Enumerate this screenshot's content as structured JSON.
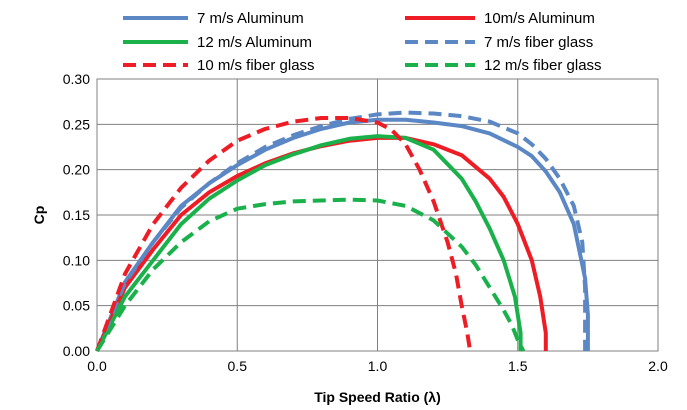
{
  "chart_data": {
    "type": "line",
    "title": "",
    "xlabel": "Tip Speed Ratio (λ)",
    "ylabel": "Cp",
    "xlim": [
      0.0,
      2.0
    ],
    "ylim": [
      0.0,
      0.3
    ],
    "x_ticks": [
      "0.0",
      "0.5",
      "1.0",
      "1.5",
      "2.0"
    ],
    "y_ticks": [
      "0.00",
      "0.05",
      "0.10",
      "0.15",
      "0.20",
      "0.25",
      "0.30"
    ],
    "grid": true,
    "legend_position": "top",
    "series": [
      {
        "name": "7 m/s Aluminum",
        "color": "#5b87c5",
        "dash": "solid",
        "x": [
          0.0,
          0.1,
          0.2,
          0.3,
          0.4,
          0.5,
          0.6,
          0.7,
          0.8,
          0.9,
          1.0,
          1.1,
          1.2,
          1.3,
          1.4,
          1.5,
          1.55,
          1.6,
          1.65,
          1.7,
          1.72,
          1.74,
          1.75,
          1.75
        ],
        "y": [
          0.0,
          0.076,
          0.12,
          0.16,
          0.185,
          0.205,
          0.222,
          0.235,
          0.245,
          0.252,
          0.255,
          0.255,
          0.252,
          0.248,
          0.24,
          0.225,
          0.215,
          0.198,
          0.175,
          0.14,
          0.11,
          0.08,
          0.04,
          0.0
        ]
      },
      {
        "name": "10m/s Aluminum",
        "color": "#ee1c24",
        "dash": "solid",
        "x": [
          0.0,
          0.1,
          0.2,
          0.3,
          0.4,
          0.5,
          0.6,
          0.7,
          0.8,
          0.9,
          1.0,
          1.1,
          1.2,
          1.3,
          1.4,
          1.45,
          1.5,
          1.55,
          1.58,
          1.6,
          1.6
        ],
        "y": [
          0.0,
          0.07,
          0.112,
          0.15,
          0.175,
          0.193,
          0.207,
          0.218,
          0.226,
          0.232,
          0.235,
          0.235,
          0.228,
          0.216,
          0.19,
          0.17,
          0.14,
          0.1,
          0.06,
          0.02,
          0.0
        ]
      },
      {
        "name": "12 m/s Aluminum",
        "color": "#1ab14b",
        "dash": "solid",
        "x": [
          0.0,
          0.1,
          0.2,
          0.3,
          0.4,
          0.5,
          0.6,
          0.7,
          0.8,
          0.9,
          1.0,
          1.1,
          1.2,
          1.3,
          1.35,
          1.4,
          1.45,
          1.49,
          1.51,
          1.51
        ],
        "y": [
          0.0,
          0.06,
          0.1,
          0.14,
          0.168,
          0.188,
          0.205,
          0.217,
          0.227,
          0.234,
          0.237,
          0.235,
          0.222,
          0.19,
          0.165,
          0.135,
          0.1,
          0.06,
          0.02,
          0.0
        ]
      },
      {
        "name": "7 m/s fiber glass",
        "color": "#5b87c5",
        "dash": "dashed",
        "x": [
          0.0,
          0.1,
          0.2,
          0.3,
          0.4,
          0.5,
          0.6,
          0.7,
          0.8,
          0.9,
          1.0,
          1.1,
          1.2,
          1.3,
          1.4,
          1.5,
          1.55,
          1.6,
          1.65,
          1.7,
          1.73,
          1.74,
          1.74
        ],
        "y": [
          0.0,
          0.075,
          0.12,
          0.158,
          0.185,
          0.207,
          0.225,
          0.238,
          0.248,
          0.256,
          0.261,
          0.263,
          0.262,
          0.259,
          0.253,
          0.24,
          0.228,
          0.212,
          0.19,
          0.16,
          0.12,
          0.07,
          0.0
        ]
      },
      {
        "name": "10 m/s fiber glass",
        "color": "#ee1c24",
        "dash": "dashed",
        "x": [
          0.0,
          0.1,
          0.2,
          0.3,
          0.4,
          0.5,
          0.6,
          0.7,
          0.8,
          0.9,
          1.0,
          1.05,
          1.1,
          1.15,
          1.2,
          1.25,
          1.28,
          1.3,
          1.32,
          1.33
        ],
        "y": [
          0.0,
          0.085,
          0.14,
          0.18,
          0.21,
          0.232,
          0.245,
          0.253,
          0.257,
          0.257,
          0.252,
          0.244,
          0.228,
          0.2,
          0.165,
          0.12,
          0.085,
          0.05,
          0.02,
          0.0
        ]
      },
      {
        "name": "12 m/s fiber glass",
        "color": "#1ab14b",
        "dash": "dashed",
        "x": [
          0.0,
          0.1,
          0.2,
          0.3,
          0.4,
          0.5,
          0.6,
          0.7,
          0.8,
          0.9,
          1.0,
          1.1,
          1.2,
          1.3,
          1.35,
          1.4,
          1.45,
          1.48,
          1.5,
          1.52
        ],
        "y": [
          0.0,
          0.05,
          0.09,
          0.12,
          0.143,
          0.157,
          0.162,
          0.165,
          0.166,
          0.167,
          0.166,
          0.16,
          0.144,
          0.115,
          0.095,
          0.07,
          0.045,
          0.028,
          0.012,
          0.0
        ]
      }
    ]
  }
}
